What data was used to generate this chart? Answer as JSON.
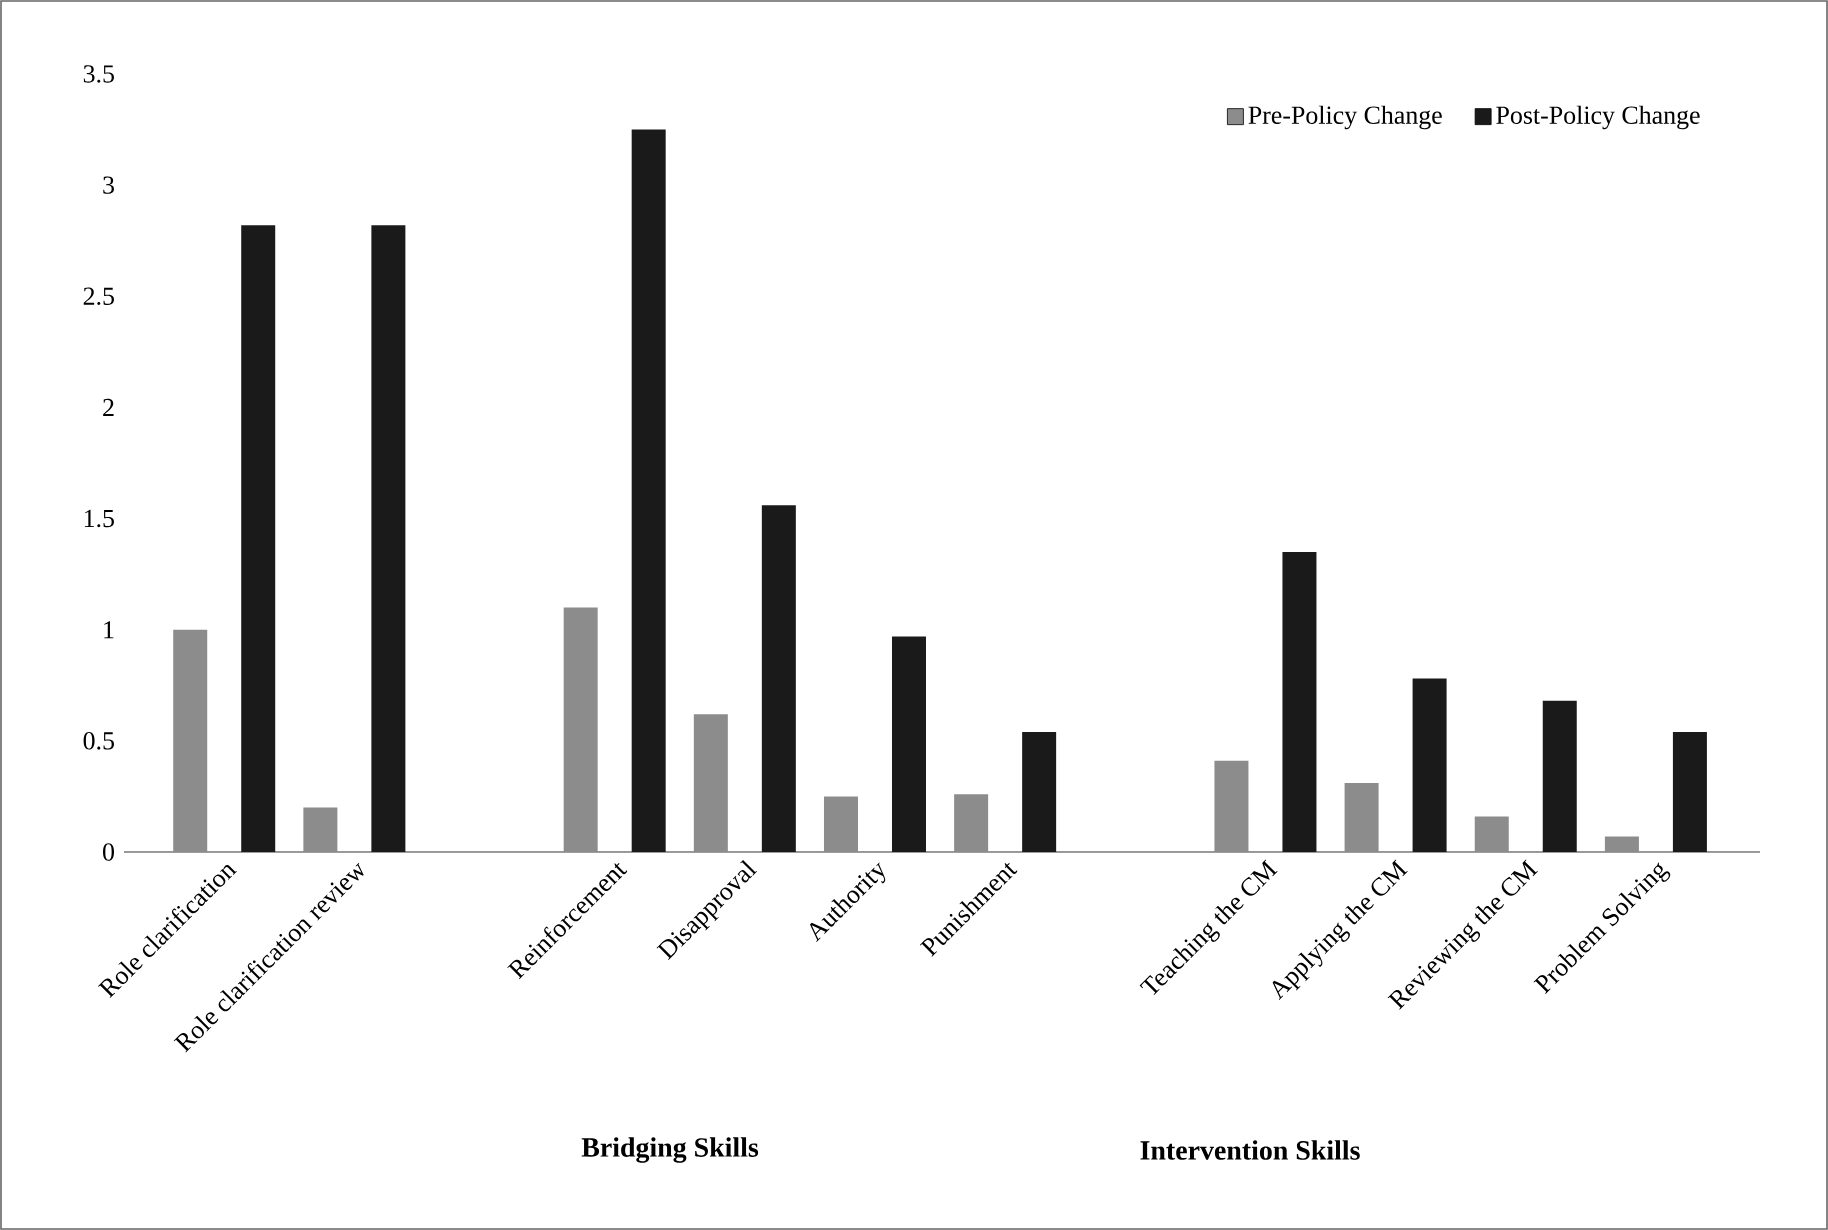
{
  "chart_data": {
    "type": "bar",
    "categories": [
      "Role clarification",
      "Role clarification review",
      null,
      "Reinforcement",
      "Disapproval",
      "Authority",
      "Punishment",
      null,
      "Teaching the CM",
      "Applying the CM",
      "Reviewing the CM",
      "Problem Solving"
    ],
    "series": [
      {
        "name": "Pre-Policy Change",
        "color": "#8c8c8c",
        "values": [
          1.0,
          0.2,
          null,
          1.1,
          0.62,
          0.25,
          0.26,
          null,
          0.41,
          0.31,
          0.16,
          0.07
        ]
      },
      {
        "name": "Post-Policy Change",
        "color": "#1a1a1a",
        "values": [
          2.82,
          2.82,
          null,
          3.25,
          1.56,
          0.97,
          0.54,
          null,
          1.35,
          0.78,
          0.68,
          0.54
        ]
      }
    ],
    "ylim": [
      0,
      3.5
    ],
    "yticks": [
      0,
      0.5,
      1,
      1.5,
      2,
      2.5,
      3,
      3.5
    ],
    "grid": false,
    "legend": "top right",
    "annotations": [
      "Bridging Skills",
      "Intervention Skills"
    ]
  }
}
